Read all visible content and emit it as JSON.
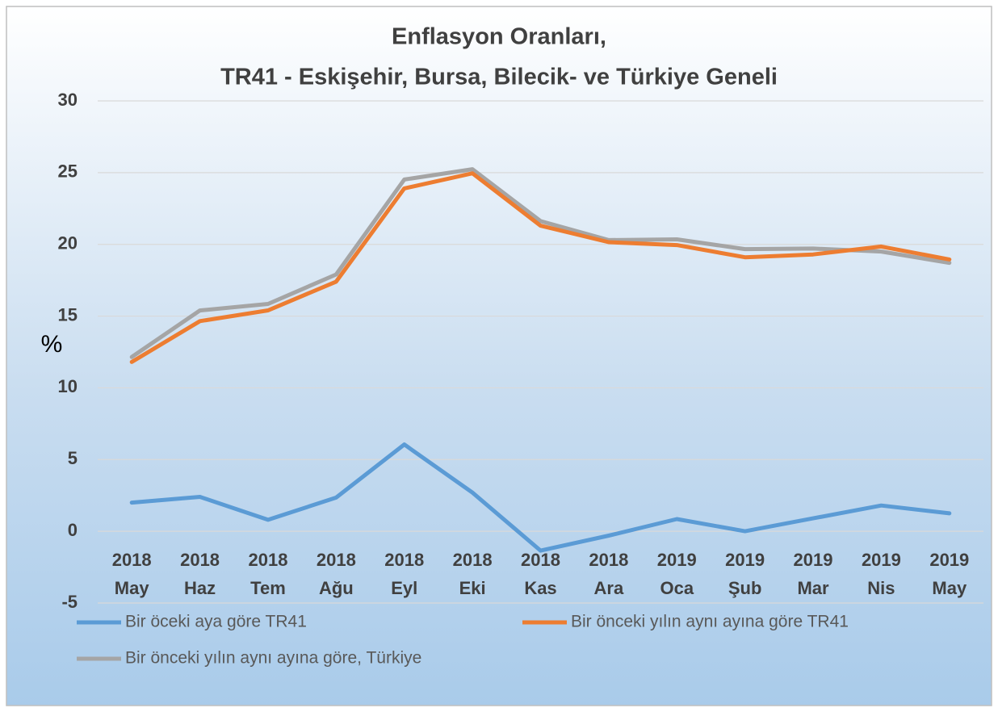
{
  "chart_data": {
    "type": "line",
    "title": [
      "Enflasyon Oranları,",
      "TR41 - Eskişehir, Bursa, Bilecik- ve Türkiye Geneli"
    ],
    "y_label": "%",
    "categories": [
      "2018 May",
      "2018 Haz",
      "2018 Tem",
      "2018 Ağu",
      "2018 Eyl",
      "2018 Eki",
      "2018 Kas",
      "2018 Ara",
      "2019 Oca",
      "2019 Şub",
      "2019 Mar",
      "2019 Nis",
      "2019 May"
    ],
    "series": [
      {
        "name": "Bir öceki aya göre TR41",
        "color": "#5b9bd5",
        "values": [
          2.0,
          2.4,
          0.8,
          2.35,
          6.05,
          2.7,
          -1.35,
          -0.3,
          0.85,
          0.0,
          0.9,
          1.8,
          1.25
        ]
      },
      {
        "name": "Bir önceki yılın aynı ayına göre TR41",
        "color": "#ed7d31",
        "values": [
          11.8,
          14.65,
          15.4,
          17.4,
          23.9,
          24.95,
          21.3,
          20.15,
          19.95,
          19.1,
          19.3,
          19.85,
          18.95
        ]
      },
      {
        "name": "Bir önceki yılın aynı ayına göre, Türkiye",
        "color": "#a5a5a5",
        "values": [
          12.15,
          15.39,
          15.85,
          17.9,
          24.52,
          25.24,
          21.62,
          20.3,
          20.35,
          19.67,
          19.71,
          19.5,
          18.71
        ]
      }
    ],
    "ylim": [
      -5,
      30
    ],
    "yticks": [
      -5,
      0,
      5,
      10,
      15,
      20,
      25,
      30
    ],
    "grid": true
  }
}
